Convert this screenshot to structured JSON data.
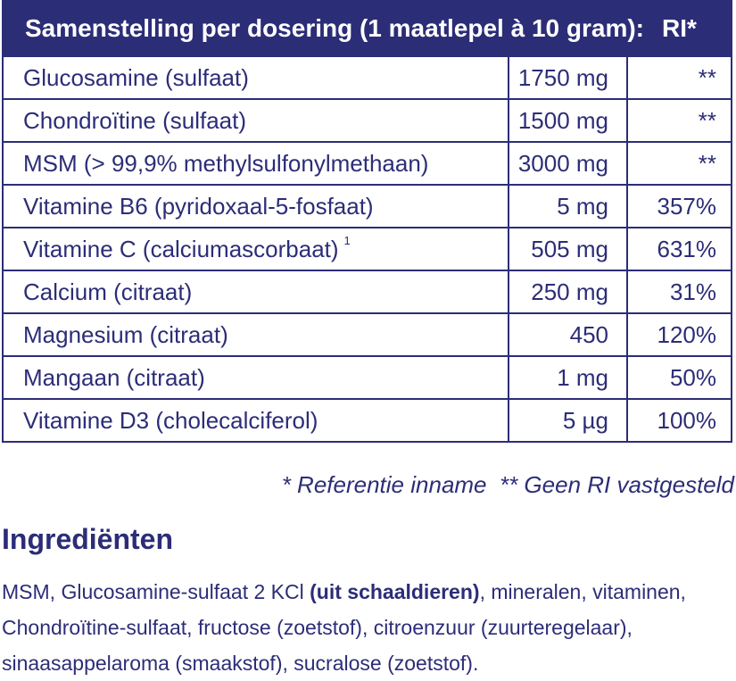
{
  "table": {
    "header_label": "Samenstelling per dosering (1 maatlepel à 10 gram):",
    "header_ri": "RI*",
    "rows": [
      {
        "name": "Glucosamine (sulfaat)",
        "amount": "1750 mg",
        "ri": "**"
      },
      {
        "name": "Chondroïtine (sulfaat)",
        "amount": "1500 mg",
        "ri": "**"
      },
      {
        "name": "MSM (> 99,9% methylsulfonylmethaan)",
        "amount": "3000 mg",
        "ri": "**"
      },
      {
        "name": "Vitamine B6 (pyridoxaal-5-fosfaat)",
        "amount": "5 mg",
        "ri": "357%"
      },
      {
        "name": "Vitamine C (calciumascorbaat)",
        "sup": "1",
        "amount": "505 mg",
        "ri": "631%"
      },
      {
        "name": "Calcium (citraat)",
        "amount": "250 mg",
        "ri": "31%"
      },
      {
        "name": "Magnesium (citraat)",
        "amount": "450",
        "ri": "120%"
      },
      {
        "name": "Mangaan (citraat)",
        "amount": "1 mg",
        "ri": "50%"
      },
      {
        "name": "Vitamine D3 (cholecalciferol)",
        "amount": "5 µg",
        "ri": "100%"
      }
    ]
  },
  "footnote": "* Referentie inname  ** Geen RI vastgesteld",
  "ingredients": {
    "title": "Ingrediënten",
    "text_before": "MSM, Glucosamine-sulfaat 2 KCl ",
    "allergen": "(uit schaaldieren)",
    "text_after": ", mineralen, vitaminen, Chondroïtine-sulfaat, fructose (zoetstof), citroenzuur (zuurteregelaar), sinaasappelaroma (smaakstof), sucralose (zoetstof)."
  },
  "colors": {
    "brand": "#2c2d77",
    "background": "#ffffff"
  }
}
